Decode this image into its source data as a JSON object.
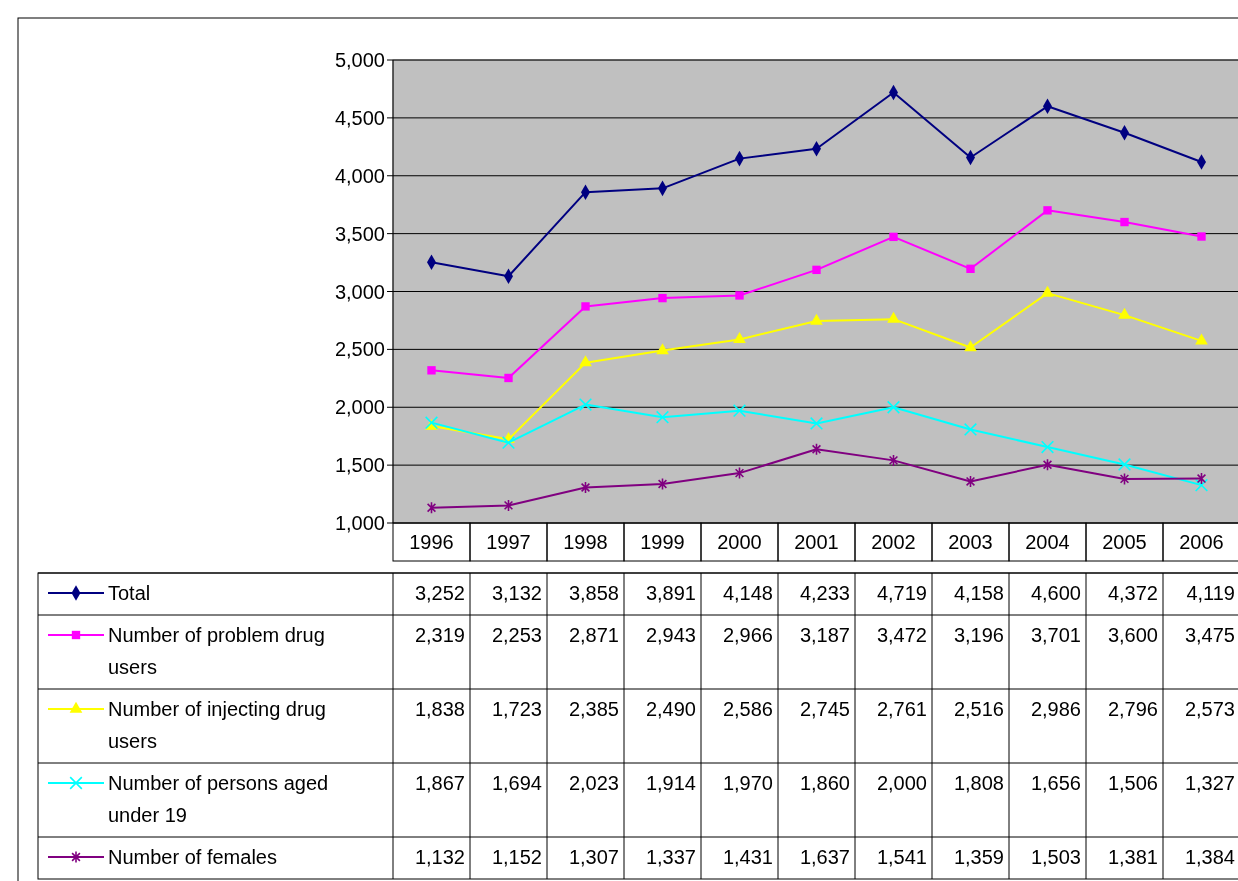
{
  "chart_data": {
    "type": "line",
    "categories": [
      "1996",
      "1997",
      "1998",
      "1999",
      "2000",
      "2001",
      "2002",
      "2003",
      "2004",
      "2005",
      "2006"
    ],
    "series": [
      {
        "name": "Total",
        "color": "#000080",
        "marker": "diamond",
        "values": [
          3252,
          3132,
          3858,
          3891,
          4148,
          4233,
          4719,
          4158,
          4600,
          4372,
          4119
        ],
        "value_labels": [
          "3,252",
          "3,132",
          "3,858",
          "3,891",
          "4,148",
          "4,233",
          "4,719",
          "4,158",
          "4,600",
          "4,372",
          "4,119"
        ]
      },
      {
        "name": "Number of problem drug users",
        "color": "#ff00ff",
        "marker": "square",
        "values": [
          2319,
          2253,
          2871,
          2943,
          2966,
          3187,
          3472,
          3196,
          3701,
          3600,
          3475
        ],
        "value_labels": [
          "2,319",
          "2,253",
          "2,871",
          "2,943",
          "2,966",
          "3,187",
          "3,472",
          "3,196",
          "3,701",
          "3,600",
          "3,475"
        ]
      },
      {
        "name": "Number of injecting drug users",
        "color": "#ffff00",
        "marker": "triangle",
        "values": [
          1838,
          1723,
          2385,
          2490,
          2586,
          2745,
          2761,
          2516,
          2986,
          2796,
          2573
        ],
        "value_labels": [
          "1,838",
          "1,723",
          "2,385",
          "2,490",
          "2,586",
          "2,745",
          "2,761",
          "2,516",
          "2,986",
          "2,796",
          "2,573"
        ]
      },
      {
        "name": "Number of persons aged under 19",
        "color": "#00ffff",
        "marker": "cross",
        "values": [
          1867,
          1694,
          2023,
          1914,
          1970,
          1860,
          2000,
          1808,
          1656,
          1506,
          1327
        ],
        "value_labels": [
          "1,867",
          "1,694",
          "2,023",
          "1,914",
          "1,970",
          "1,860",
          "2,000",
          "1,808",
          "1,656",
          "1,506",
          "1,327"
        ]
      },
      {
        "name": "Number of females",
        "color": "#800080",
        "marker": "cross",
        "values": [
          1132,
          1152,
          1307,
          1337,
          1431,
          1637,
          1541,
          1359,
          1503,
          1381,
          1384
        ],
        "value_labels": [
          "1,132",
          "1,152",
          "1,307",
          "1,337",
          "1,431",
          "1,637",
          "1,541",
          "1,359",
          "1,503",
          "1,381",
          "1,384"
        ]
      }
    ],
    "ylim": [
      1000,
      5000
    ],
    "yticks": [
      {
        "value": 1000,
        "label": "1,000"
      },
      {
        "value": 1500,
        "label": "1,500"
      },
      {
        "value": 2000,
        "label": "2,000"
      },
      {
        "value": 2500,
        "label": "2,500"
      },
      {
        "value": 3000,
        "label": "3,000"
      },
      {
        "value": 3500,
        "label": "3,500"
      },
      {
        "value": 4000,
        "label": "4,000"
      },
      {
        "value": 4500,
        "label": "4,500"
      },
      {
        "value": 5000,
        "label": "5,000"
      }
    ],
    "grid": "y",
    "legend": "bottom",
    "line_style": "solid"
  }
}
